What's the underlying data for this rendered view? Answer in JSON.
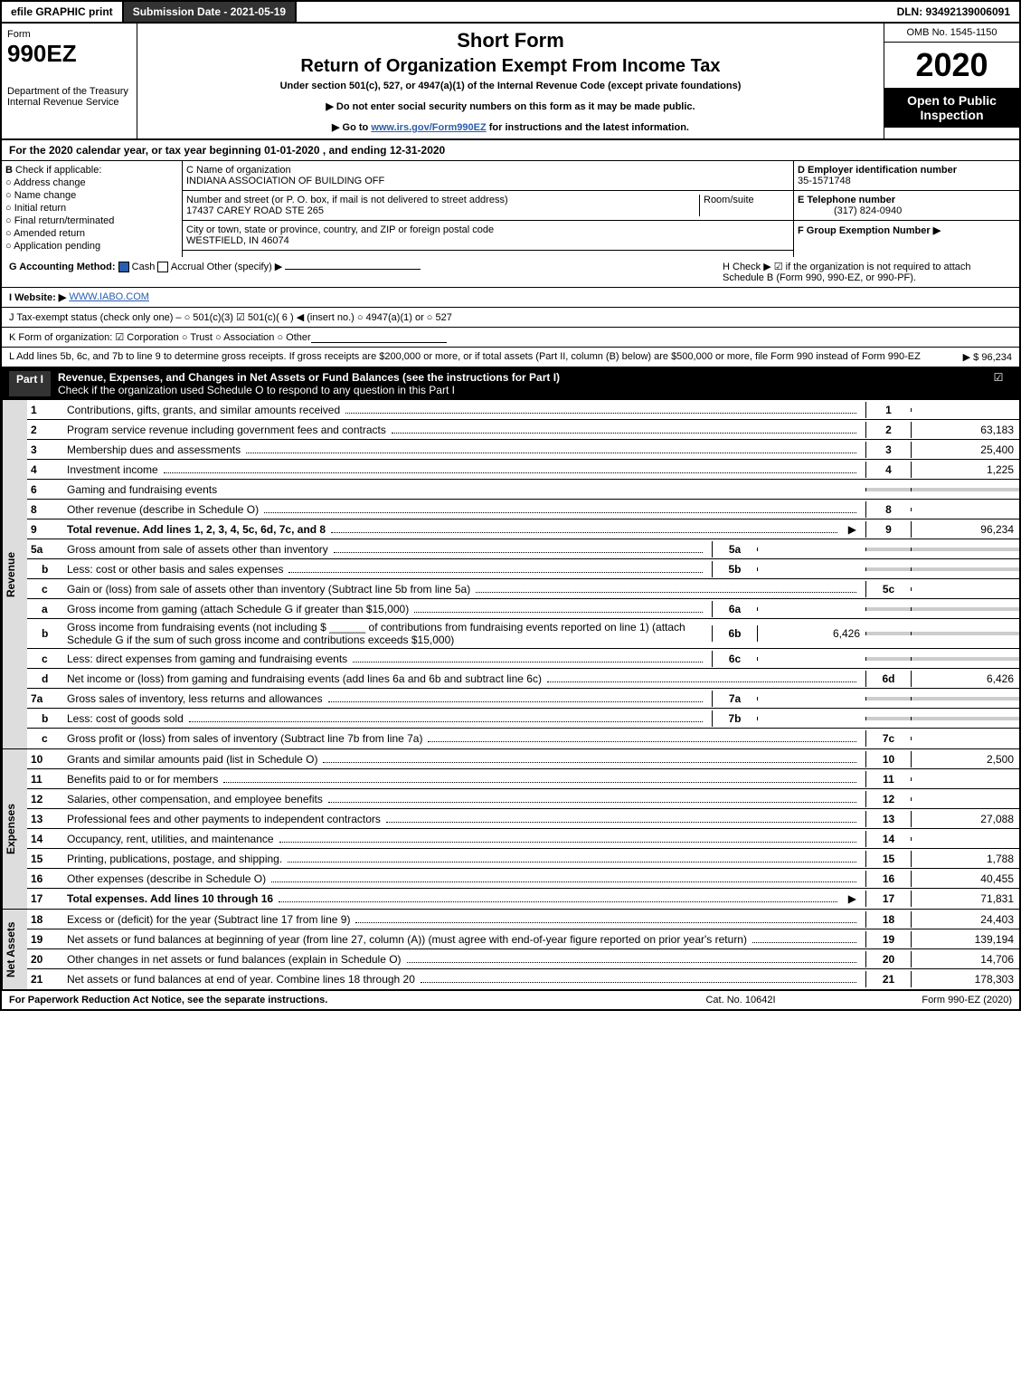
{
  "topbar": {
    "efile": "efile GRAPHIC print",
    "submission": "Submission Date - 2021-05-19",
    "dln": "DLN: 93492139006091"
  },
  "header": {
    "form_label": "Form",
    "form_num": "990EZ",
    "shortform": "Short Form",
    "return": "Return of Organization Exempt From Income Tax",
    "under": "Under section 501(c), 527, or 4947(a)(1) of the Internal Revenue Code (except private foundations)",
    "no_ssn": "▶ Do not enter social security numbers on this form as it may be made public.",
    "goto_pre": "▶ Go to ",
    "goto_link": "www.irs.gov/Form990EZ",
    "goto_post": " for instructions and the latest information.",
    "dept": "Department of the Treasury\nInternal Revenue Service",
    "omb": "OMB No. 1545-1150",
    "year": "2020",
    "open": "Open to Public Inspection"
  },
  "section_a": {
    "text": "For the 2020 calendar year, or tax year beginning 01-01-2020 , and ending 12-31-2020"
  },
  "section_b": {
    "label": "Check if applicable:",
    "opts": [
      "Address change",
      "Name change",
      "Initial return",
      "Final return/terminated",
      "Amended return",
      "Application pending"
    ]
  },
  "section_c": {
    "name_label": "C Name of organization",
    "name": "INDIANA ASSOCIATION OF BUILDING OFF",
    "addr_label": "Number and street (or P. O. box, if mail is not delivered to street address)",
    "addr": "17437 CAREY ROAD STE 265",
    "room_label": "Room/suite",
    "city_label": "City or town, state or province, country, and ZIP or foreign postal code",
    "city": "WESTFIELD, IN  46074"
  },
  "section_d": {
    "ein_label": "D Employer identification number",
    "ein": "35-1571748",
    "phone_label": "E Telephone number",
    "phone": "(317) 824-0940",
    "group_label": "F Group Exemption Number ▶"
  },
  "section_g": {
    "label": "G Accounting Method:",
    "cash": "Cash",
    "accrual": "Accrual",
    "other": "Other (specify) ▶"
  },
  "section_h": {
    "text": "H  Check ▶ ☑ if the organization is not required to attach Schedule B (Form 990, 990-EZ, or 990-PF)."
  },
  "section_i": {
    "label": "I Website: ▶",
    "url": "WWW.IABO.COM"
  },
  "section_j": {
    "text": "J Tax-exempt status (check only one) – ○ 501(c)(3) ☑ 501(c)( 6 ) ◀ (insert no.) ○ 4947(a)(1) or ○ 527"
  },
  "section_k": {
    "text": "K Form of organization:  ☑ Corporation  ○ Trust  ○ Association  ○ Other"
  },
  "section_l": {
    "text": "L Add lines 5b, 6c, and 7b to line 9 to determine gross receipts. If gross receipts are $200,000 or more, or if total assets (Part II, column (B) below) are $500,000 or more, file Form 990 instead of Form 990-EZ",
    "amount": "▶ $ 96,234"
  },
  "part1": {
    "label": "Part I",
    "title": "Revenue, Expenses, and Changes in Net Assets or Fund Balances (see the instructions for Part I)",
    "check": "Check if the organization used Schedule O to respond to any question in this Part I",
    "checked": "☑"
  },
  "revenue": {
    "side": "Revenue",
    "lines": {
      "1": {
        "n": "1",
        "desc": "Contributions, gifts, grants, and similar amounts received",
        "col": "1",
        "val": ""
      },
      "2": {
        "n": "2",
        "desc": "Program service revenue including government fees and contracts",
        "col": "2",
        "val": "63,183"
      },
      "3": {
        "n": "3",
        "desc": "Membership dues and assessments",
        "col": "3",
        "val": "25,400"
      },
      "4": {
        "n": "4",
        "desc": "Investment income",
        "col": "4",
        "val": "1,225"
      },
      "5a": {
        "n": "5a",
        "desc": "Gross amount from sale of assets other than inventory",
        "mini": "5a",
        "mval": ""
      },
      "5b": {
        "n": "b",
        "desc": "Less: cost or other basis and sales expenses",
        "mini": "5b",
        "mval": ""
      },
      "5c": {
        "n": "c",
        "desc": "Gain or (loss) from sale of assets other than inventory (Subtract line 5b from line 5a)",
        "col": "5c",
        "val": ""
      },
      "6": {
        "n": "6",
        "desc": "Gaming and fundraising events"
      },
      "6a": {
        "n": "a",
        "desc": "Gross income from gaming (attach Schedule G if greater than $15,000)",
        "mini": "6a",
        "mval": ""
      },
      "6b": {
        "n": "b",
        "desc": "Gross income from fundraising events (not including $ ______ of contributions from fundraising events reported on line 1) (attach Schedule G if the sum of such gross income and contributions exceeds $15,000)",
        "mini": "6b",
        "mval": "6,426"
      },
      "6c": {
        "n": "c",
        "desc": "Less: direct expenses from gaming and fundraising events",
        "mini": "6c",
        "mval": ""
      },
      "6d": {
        "n": "d",
        "desc": "Net income or (loss) from gaming and fundraising events (add lines 6a and 6b and subtract line 6c)",
        "col": "6d",
        "val": "6,426"
      },
      "7a": {
        "n": "7a",
        "desc": "Gross sales of inventory, less returns and allowances",
        "mini": "7a",
        "mval": ""
      },
      "7b": {
        "n": "b",
        "desc": "Less: cost of goods sold",
        "mini": "7b",
        "mval": ""
      },
      "7c": {
        "n": "c",
        "desc": "Gross profit or (loss) from sales of inventory (Subtract line 7b from line 7a)",
        "col": "7c",
        "val": ""
      },
      "8": {
        "n": "8",
        "desc": "Other revenue (describe in Schedule O)",
        "col": "8",
        "val": ""
      },
      "9": {
        "n": "9",
        "desc": "Total revenue. Add lines 1, 2, 3, 4, 5c, 6d, 7c, and 8",
        "col": "9",
        "val": "96,234",
        "bold": true
      }
    }
  },
  "expenses": {
    "side": "Expenses",
    "lines": {
      "10": {
        "n": "10",
        "desc": "Grants and similar amounts paid (list in Schedule O)",
        "col": "10",
        "val": "2,500"
      },
      "11": {
        "n": "11",
        "desc": "Benefits paid to or for members",
        "col": "11",
        "val": ""
      },
      "12": {
        "n": "12",
        "desc": "Salaries, other compensation, and employee benefits",
        "col": "12",
        "val": ""
      },
      "13": {
        "n": "13",
        "desc": "Professional fees and other payments to independent contractors",
        "col": "13",
        "val": "27,088"
      },
      "14": {
        "n": "14",
        "desc": "Occupancy, rent, utilities, and maintenance",
        "col": "14",
        "val": ""
      },
      "15": {
        "n": "15",
        "desc": "Printing, publications, postage, and shipping.",
        "col": "15",
        "val": "1,788"
      },
      "16": {
        "n": "16",
        "desc": "Other expenses (describe in Schedule O)",
        "col": "16",
        "val": "40,455"
      },
      "17": {
        "n": "17",
        "desc": "Total expenses. Add lines 10 through 16",
        "col": "17",
        "val": "71,831",
        "bold": true
      }
    }
  },
  "netassets": {
    "side": "Net Assets",
    "lines": {
      "18": {
        "n": "18",
        "desc": "Excess or (deficit) for the year (Subtract line 17 from line 9)",
        "col": "18",
        "val": "24,403"
      },
      "19": {
        "n": "19",
        "desc": "Net assets or fund balances at beginning of year (from line 27, column (A)) (must agree with end-of-year figure reported on prior year's return)",
        "col": "19",
        "val": "139,194"
      },
      "20": {
        "n": "20",
        "desc": "Other changes in net assets or fund balances (explain in Schedule O)",
        "col": "20",
        "val": "14,706"
      },
      "21": {
        "n": "21",
        "desc": "Net assets or fund balances at end of year. Combine lines 18 through 20",
        "col": "21",
        "val": "178,303"
      }
    }
  },
  "footer": {
    "left": "For Paperwork Reduction Act Notice, see the separate instructions.",
    "mid": "Cat. No. 10642I",
    "right": "Form 990-EZ (2020)"
  }
}
